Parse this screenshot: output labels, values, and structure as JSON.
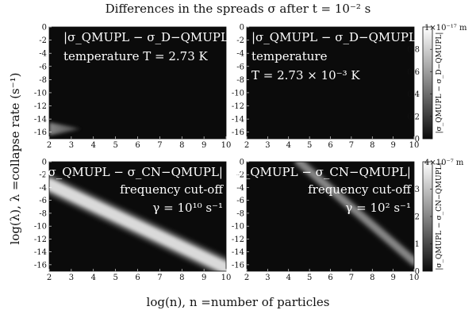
{
  "chart_data": {
    "type": "heatmap",
    "title": "Differences in the spreads σ after t = 10⁻² s",
    "xlabel": "log(n),  n =number of particles",
    "ylabel": "log(λ), λ =collapse rate (s⁻¹)",
    "x_ticks": [
      "2",
      "3",
      "4",
      "5",
      "6",
      "7",
      "8",
      "9",
      "10"
    ],
    "y_ticks": [
      "0",
      "-2",
      "-4",
      "-6",
      "-8",
      "-10",
      "-12",
      "-14",
      "-16"
    ],
    "xlim": [
      2,
      10
    ],
    "ylim": [
      -17,
      0
    ],
    "panels": [
      {
        "id": "top-left",
        "annotation": [
          "|σ_QMUPL − σ_D−QMUPL|",
          "temperature T = 2.73 K"
        ],
        "feature": "blob",
        "blob": {
          "x_range": [
            2,
            3.5
          ],
          "y_center": -15.5,
          "y_halfwidth": 1.0,
          "peak": 0.3
        }
      },
      {
        "id": "top-right",
        "annotation": [
          "|σ_QMUPL − σ_D−QMUPL|",
          "temperature",
          "T = 2.73 × 10⁻³ K"
        ],
        "feature": "none"
      },
      {
        "id": "bottom-left",
        "annotation": [
          "|σ_QMUPL − σ_CN−QMUPL|",
          "frequency cut-off",
          "γ = 10¹⁰ s⁻¹"
        ],
        "feature": "band",
        "band": {
          "start": [
            2,
            -3.5
          ],
          "end": [
            10,
            -16.5
          ],
          "halfwidth": 0.9,
          "peak": 0.85
        }
      },
      {
        "id": "bottom-right",
        "annotation": [
          "|σ_QMUPL − σ_CN−QMUPL|",
          "frequency cut-off",
          "γ = 10² s⁻¹"
        ],
        "feature": "band",
        "band": {
          "start": [
            4.5,
            0
          ],
          "end": [
            10,
            -15.5
          ],
          "halfwidth": 0.5,
          "peak": 0.5
        }
      }
    ],
    "colorbars": [
      {
        "id": "top",
        "max_label": "1×10⁻¹⁷ m",
        "ticks": [
          "0.8",
          "0.6",
          "0.4",
          "0.2",
          "0"
        ],
        "tick_values": [
          0.8,
          0.6,
          0.4,
          0.2,
          0
        ],
        "label": "|σ_QMUPL − σ_D−QMUPL|"
      },
      {
        "id": "bottom",
        "max_label": "4×10⁻⁷ m",
        "ticks": [
          "3",
          "2",
          "1",
          "0"
        ],
        "tick_values": [
          3,
          2,
          1,
          0
        ],
        "vmax": 4,
        "label": "|σ_QMUPL − σ_CN−QMUPL|"
      }
    ],
    "colormap": {
      "low": "#0b0b0b",
      "high": "#ffffff"
    }
  }
}
